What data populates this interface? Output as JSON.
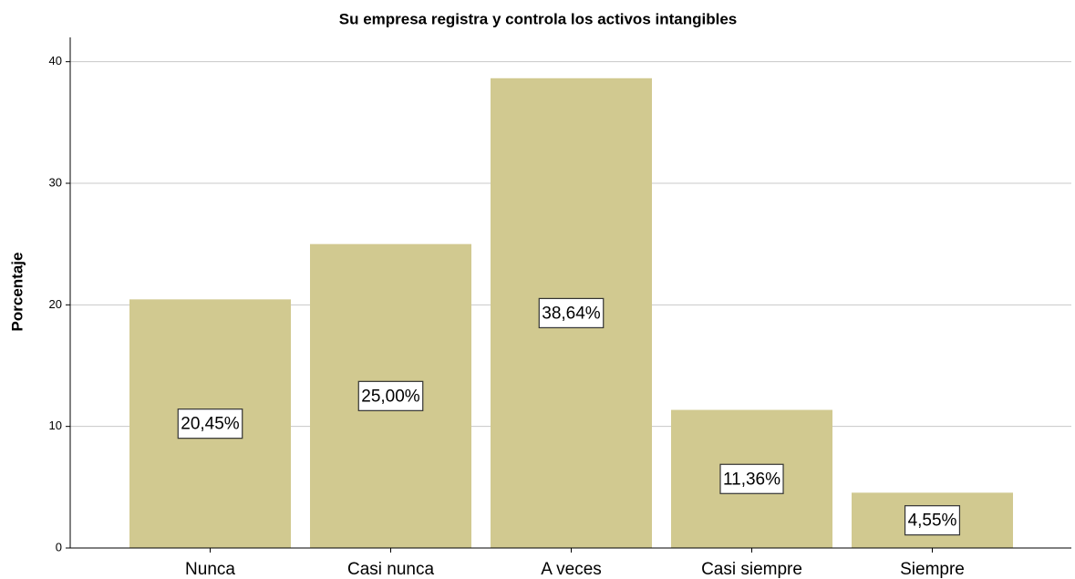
{
  "chart_data": {
    "type": "bar",
    "title": "Su empresa registra y controla los activos intangibles",
    "y_label": "Porcentaje",
    "categories": [
      "Nunca",
      "Casi nunca",
      "A veces",
      "Casi siempre",
      "Siempre"
    ],
    "values": [
      20.45,
      25.0,
      38.64,
      11.36,
      4.55
    ],
    "value_labels": [
      "20,45%",
      "25,00%",
      "38,64%",
      "11,36%",
      "4,55%"
    ],
    "color": "#d1c990",
    "ylim": [
      0,
      42
    ],
    "yticks": [
      0,
      10,
      20,
      30,
      40
    ],
    "grid": true
  }
}
